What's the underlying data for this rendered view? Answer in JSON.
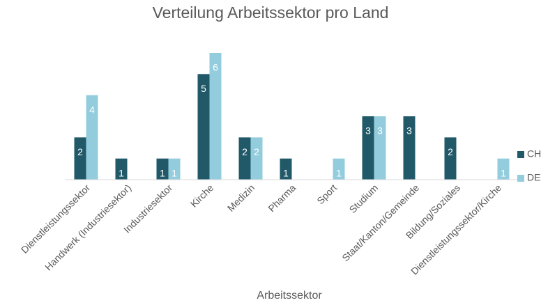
{
  "chart_data": {
    "type": "bar",
    "title": "Verteilung Arbeitssektor pro Land",
    "x_label": "Arbeitssektor",
    "categories": [
      "Dienstleistungssektor",
      "Handwerk (Industriesektor)",
      "Industriesektor",
      "Kirche",
      "Medizin",
      "Pharma",
      "Sport",
      "Studium",
      "Staat/Kanton/Gemeinde",
      "Bildung/Soziales",
      "Dienstleistungssektor/Kirche"
    ],
    "series": [
      {
        "name": "CH",
        "color": "#215968",
        "values": [
          2,
          1,
          1,
          5,
          2,
          1,
          null,
          3,
          3,
          2,
          null
        ]
      },
      {
        "name": "DE",
        "color": "#93cddd",
        "values": [
          4,
          null,
          1,
          6,
          2,
          null,
          1,
          3,
          null,
          null,
          1
        ]
      }
    ],
    "ylim": [
      0,
      6
    ],
    "legend": "right"
  }
}
